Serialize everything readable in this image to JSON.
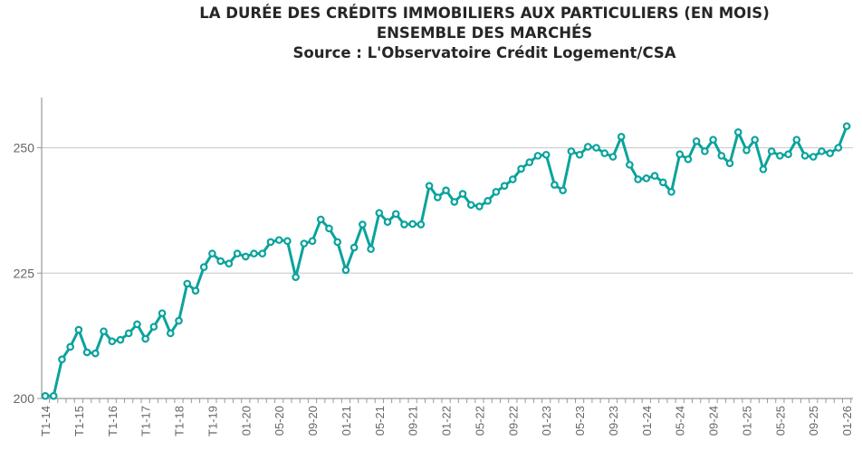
{
  "chart_data": {
    "type": "line",
    "title": "LA DURÉE DES CRÉDITS IMMOBILIERS AUX PARTICULIERS (EN MOIS)",
    "subtitle": "ENSEMBLE DES MARCHÉS",
    "source": "Source : L'Observatoire Crédit Logement/CSA",
    "xlabel": "",
    "ylabel": "",
    "ylim": [
      200,
      260
    ],
    "y_ticks": [
      "200",
      "225",
      "250"
    ],
    "x_tick_labels": [
      "T1-14",
      "T1-15",
      "T1-16",
      "T1-17",
      "T1-18",
      "T1-19",
      "01-20",
      "05-20",
      "09-20",
      "01-21",
      "05-21",
      "09-21",
      "01-22",
      "05-22",
      "09-22",
      "01-23",
      "05-23",
      "09-23",
      "01-24",
      "05-24",
      "09-24",
      "01-25",
      "05-25",
      "09-25",
      "01-26"
    ],
    "grid": "horizontal",
    "color": "#0aa39c",
    "values": [
      200.5,
      200.5,
      207.8,
      210.3,
      213.7,
      209.2,
      209.0,
      213.4,
      211.4,
      211.7,
      213.0,
      214.8,
      211.9,
      214.3,
      217.0,
      213.0,
      215.5,
      222.9,
      221.5,
      226.2,
      228.9,
      227.4,
      226.9,
      228.9,
      228.3,
      228.9,
      228.9,
      231.2,
      231.6,
      231.4,
      224.2,
      230.9,
      231.4,
      235.7,
      233.9,
      231.2,
      225.6,
      230.1,
      234.7,
      229.8,
      237.0,
      235.2,
      236.8,
      234.7,
      234.8,
      234.7,
      242.4,
      240.1,
      241.5,
      239.2,
      240.8,
      238.6,
      238.3,
      239.4,
      241.2,
      242.4,
      243.7,
      245.8,
      247.1,
      248.4,
      248.6,
      242.6,
      241.5,
      249.3,
      248.6,
      250.2,
      250.0,
      248.9,
      248.2,
      252.2,
      246.6,
      243.7,
      243.9,
      244.4,
      243.1,
      241.2,
      248.7,
      247.7,
      251.3,
      249.3,
      251.6,
      248.4,
      246.9,
      253.1,
      249.5,
      251.6,
      245.7,
      249.3,
      248.4,
      248.7,
      251.6,
      248.4,
      248.2,
      249.3,
      248.9,
      250.0,
      254.3
    ]
  }
}
